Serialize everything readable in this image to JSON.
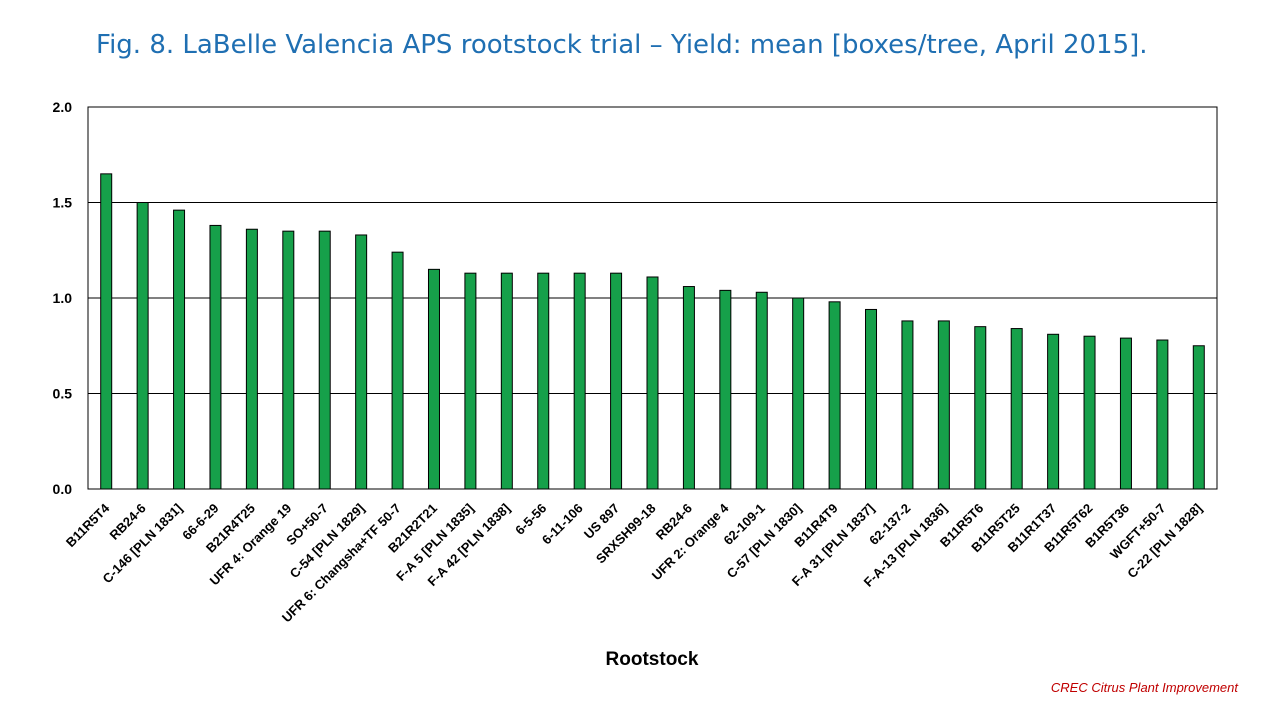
{
  "slide": {
    "title": "Fig. 8. LaBelle Valencia APS rootstock trial – Yield: mean [boxes/tree, April 2015].",
    "footer": "CREC Citrus Plant Improvement"
  },
  "colors": {
    "bar_fill": "#16a04a",
    "bar_stroke": "#000000",
    "title": "#1f6fb2",
    "footer": "#c00000",
    "gridline": "#000000"
  },
  "chart_data": {
    "type": "bar",
    "title": "",
    "xlabel": "Rootstock",
    "ylabel": "",
    "ylim": [
      0,
      2.0
    ],
    "yticks": [
      "0.0",
      "0.5",
      "1.0",
      "1.5",
      "2.0"
    ],
    "grid": true,
    "legend": "none",
    "categories": [
      "B11R5T4",
      "RB24-6",
      "C-146 [PLN 1831]",
      "66-6-29",
      "B21R4T25",
      "UFR 4: Orange 19",
      "SO+50-7",
      "C-54 [PLN 1829]",
      "UFR 6: Changsha+TF 50-7",
      "B21R2T21",
      "F-A 5 [PLN 1835]",
      "F-A 42 [PLN 1838]",
      "6-5-56",
      "6-11-106",
      "US 897",
      "SRXSH99-18",
      "RB24-6",
      "UFR 2: Orange 4",
      "62-109-1",
      "C-57 [PLN 1830]",
      "B11R4T9",
      "F-A 31 [PLN 1837]",
      "62-137-2",
      "F-A-13 [PLN 1836]",
      "B11R5T6",
      "B11R5T25",
      "B11R1T37",
      "B11R5T62",
      "B1R5T36",
      "WGFT+50-7",
      "C-22 [PLN 1828]"
    ],
    "values": [
      1.65,
      1.5,
      1.46,
      1.38,
      1.36,
      1.35,
      1.35,
      1.33,
      1.24,
      1.15,
      1.13,
      1.13,
      1.13,
      1.13,
      1.13,
      1.11,
      1.06,
      1.04,
      1.03,
      1.0,
      0.98,
      0.94,
      0.88,
      0.88,
      0.85,
      0.84,
      0.81,
      0.8,
      0.79,
      0.78,
      0.75
    ]
  }
}
